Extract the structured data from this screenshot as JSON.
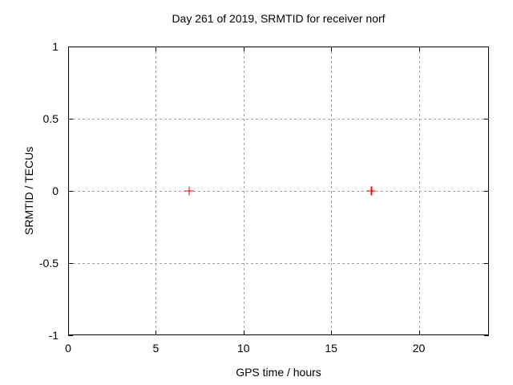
{
  "chart_data": {
    "type": "scatter",
    "title": "Day 261 of 2019, SRMTID for receiver norf",
    "xlabel": "GPS time / hours",
    "ylabel": "SRMTID / TECUs",
    "xlim": [
      0,
      24
    ],
    "ylim": [
      -1,
      1
    ],
    "xticks": [
      0,
      5,
      10,
      15,
      20
    ],
    "yticks": [
      -1,
      -0.5,
      0,
      0.5,
      1
    ],
    "grid": true,
    "legend": "none",
    "series": [
      {
        "name": "SRMTID",
        "marker": "plus",
        "color": "#ff0000",
        "points": [
          {
            "x": 6.9,
            "y": 0.0
          },
          {
            "x": 17.3,
            "y": 0.0
          }
        ]
      }
    ],
    "colors": {
      "axis": "#000000",
      "grid": "#a0a0a0",
      "background": "#ffffff",
      "marker": "#ff0000"
    }
  }
}
